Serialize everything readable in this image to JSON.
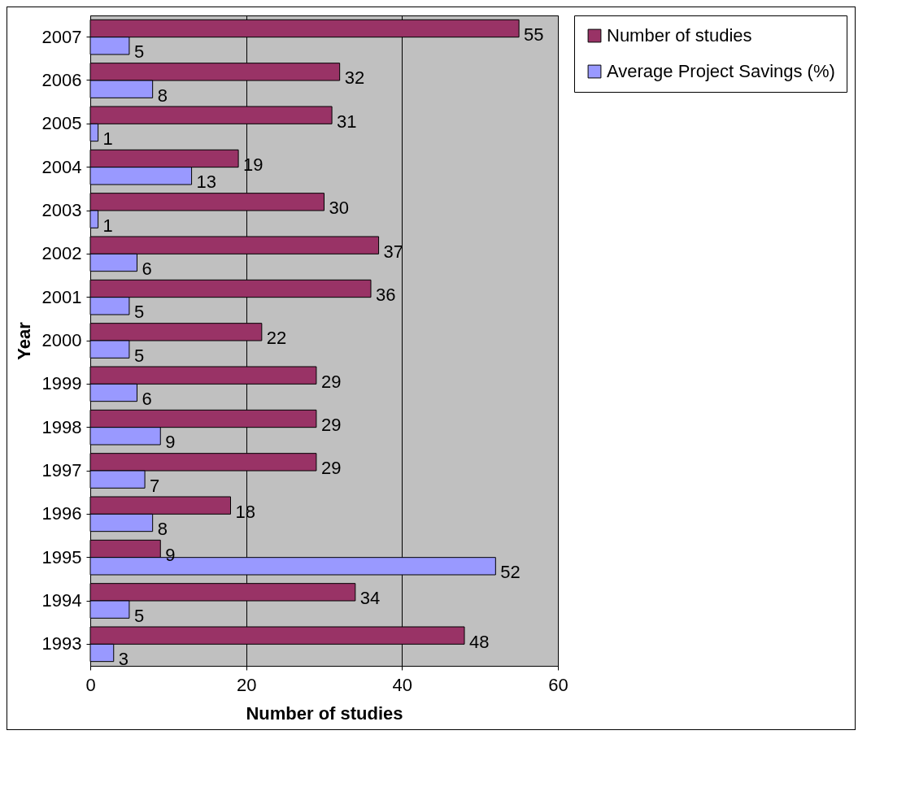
{
  "chart_data": {
    "type": "bar",
    "orientation": "horizontal",
    "xlabel": "Number of studies",
    "ylabel": "Year",
    "categories": [
      "2007",
      "2006",
      "2005",
      "2004",
      "2003",
      "2002",
      "2001",
      "2000",
      "1999",
      "1998",
      "1997",
      "1996",
      "1995",
      "1994",
      "1993"
    ],
    "series": [
      {
        "name": "Number of studies",
        "color": "#993366",
        "values": [
          55,
          32,
          31,
          19,
          30,
          37,
          36,
          22,
          29,
          29,
          29,
          18,
          9,
          34,
          48
        ]
      },
      {
        "name": "Average Project Savings (%)",
        "color": "#9999ff",
        "values": [
          5,
          8,
          1,
          13,
          1,
          6,
          5,
          5,
          6,
          9,
          7,
          8,
          52,
          5,
          3
        ]
      }
    ],
    "xlim": [
      0,
      60
    ],
    "xticks": [
      0,
      20,
      40,
      60
    ],
    "grid": "x",
    "legend": "right",
    "data_labels": true
  }
}
